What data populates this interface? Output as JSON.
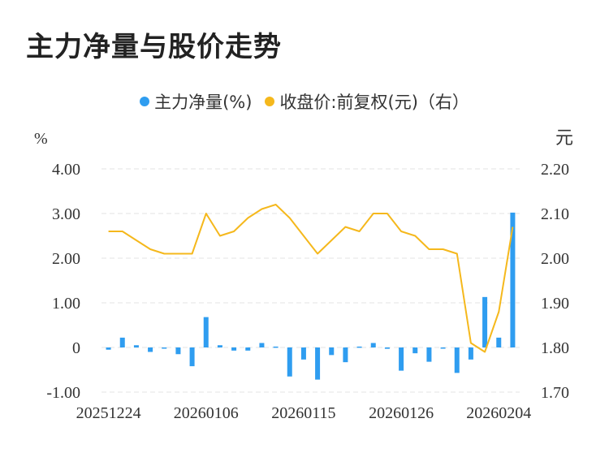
{
  "title": "主力净量与股价走势",
  "legend": {
    "bar_label": "主力净量(%)",
    "line_label": "收盘价:前复权(元)（右）"
  },
  "colors": {
    "bar": "#2f9df0",
    "line": "#f5b81c",
    "grid": "#e3e3e3",
    "text": "#333333"
  },
  "chart_data": {
    "type": "bar",
    "title": "主力净量与股价走势",
    "y_left_unit": "%",
    "y_right_unit": "元",
    "y_left_ticks": [
      "4.00",
      "3.00",
      "2.00",
      "1.00",
      "0",
      "-1.00"
    ],
    "y_right_ticks": [
      "2.20",
      "2.10",
      "2.00",
      "1.90",
      "1.80",
      "1.70"
    ],
    "y_left_range": [
      -1.0,
      4.0
    ],
    "y_right_range": [
      1.7,
      2.2
    ],
    "x_tick_labels": [
      "20251224",
      "20260106",
      "20260115",
      "20260126",
      "20260204"
    ],
    "x_tick_indices": [
      0,
      7,
      14,
      21,
      28
    ],
    "grid": true,
    "legend_position": "top-center",
    "series": [
      {
        "name": "主力净量(%)",
        "type": "bar",
        "axis": "left",
        "values": [
          -0.05,
          0.22,
          0.05,
          -0.1,
          -0.02,
          -0.15,
          -0.42,
          0.68,
          0.05,
          -0.07,
          -0.07,
          0.1,
          0.02,
          -0.65,
          -0.27,
          -0.72,
          -0.17,
          -0.33,
          0.02,
          0.1,
          -0.03,
          -0.52,
          -0.13,
          -0.32,
          -0.02,
          -0.57,
          -0.27,
          1.13,
          0.22,
          3.02
        ]
      },
      {
        "name": "收盘价:前复权(元)（右）",
        "type": "line",
        "axis": "right",
        "values": [
          2.06,
          2.06,
          2.04,
          2.02,
          2.01,
          2.01,
          2.01,
          2.1,
          2.05,
          2.06,
          2.09,
          2.11,
          2.12,
          2.09,
          2.05,
          2.01,
          2.04,
          2.07,
          2.06,
          2.1,
          2.1,
          2.06,
          2.05,
          2.02,
          2.02,
          2.01,
          1.81,
          1.79,
          1.88,
          2.07
        ]
      }
    ]
  }
}
